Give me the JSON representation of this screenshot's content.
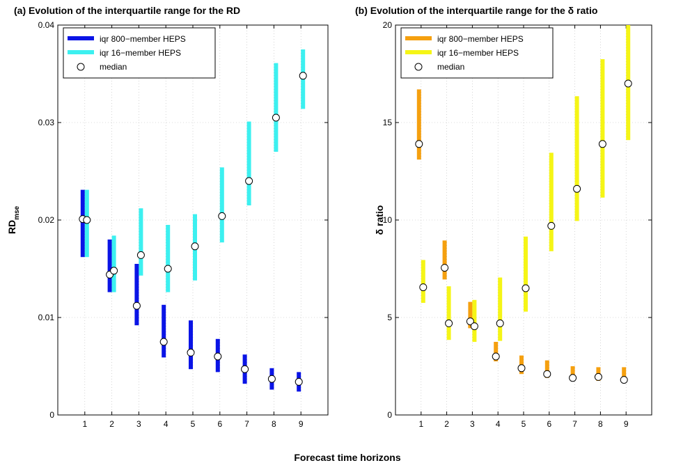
{
  "figure": {
    "xlabel": "Forecast time horizons"
  },
  "chart_data": [
    {
      "type": "range-bar",
      "title": "(a) Evolution of the interquartile range for the RD",
      "ylabel_main": "RD",
      "ylabel_sub": "mse",
      "ylim": [
        0,
        0.04
      ],
      "yticks": [
        0,
        0.01,
        0.02,
        0.03,
        0.04
      ],
      "ytick_labels": [
        "0",
        "0.01",
        "0.02",
        "0.03",
        "0.04"
      ],
      "xlim": [
        0,
        10
      ],
      "xticks": [
        1,
        2,
        3,
        4,
        5,
        6,
        7,
        8,
        9
      ],
      "grid": true,
      "legend_position": "top-left",
      "series": [
        {
          "name": "iqr 800−member HEPS",
          "color": "#0a14e6",
          "x": [
            1,
            2,
            3,
            4,
            5,
            6,
            7,
            8,
            9
          ],
          "lower": [
            0.0162,
            0.0126,
            0.0092,
            0.0059,
            0.0047,
            0.0044,
            0.0032,
            0.0026,
            0.0024
          ],
          "upper": [
            0.0231,
            0.018,
            0.0155,
            0.0113,
            0.0097,
            0.0078,
            0.0062,
            0.0048,
            0.0044
          ],
          "median": [
            0.0201,
            0.0144,
            0.0112,
            0.0075,
            0.0064,
            0.006,
            0.0047,
            0.0037,
            0.0034
          ]
        },
        {
          "name": "iqr 16−member HEPS",
          "color": "#3cf0f0",
          "x": [
            1,
            2,
            3,
            4,
            5,
            6,
            7,
            8,
            9
          ],
          "lower": [
            0.0162,
            0.0126,
            0.0143,
            0.0126,
            0.0138,
            0.0177,
            0.0215,
            0.027,
            0.0314
          ],
          "upper": [
            0.0231,
            0.0184,
            0.0212,
            0.0195,
            0.0206,
            0.0254,
            0.0301,
            0.0361,
            0.0375
          ],
          "median": [
            0.02,
            0.0148,
            0.0164,
            0.015,
            0.0173,
            0.0204,
            0.024,
            0.0305,
            0.0348
          ]
        }
      ],
      "median_label": "median"
    },
    {
      "type": "range-bar",
      "title": "(b) Evolution of the interquartile range for the δ ratio",
      "ylabel_main": "δ ratio",
      "ylim": [
        0,
        20
      ],
      "yticks": [
        0,
        5,
        10,
        15,
        20
      ],
      "ytick_labels": [
        "0",
        "5",
        "10",
        "15",
        "20"
      ],
      "xlim": [
        0,
        10
      ],
      "xticks": [
        1,
        2,
        3,
        4,
        5,
        6,
        7,
        8,
        9
      ],
      "grid": true,
      "legend_position": "top-left",
      "series": [
        {
          "name": "iqr 800−member HEPS",
          "color": "#f5a00f",
          "x": [
            1,
            2,
            3,
            4,
            5,
            6,
            7,
            8,
            9
          ],
          "lower": [
            13.1,
            6.95,
            4.45,
            2.75,
            2.1,
            1.9,
            1.75,
            1.75,
            1.7
          ],
          "upper": [
            16.7,
            8.95,
            5.8,
            3.75,
            3.05,
            2.8,
            2.5,
            2.45,
            2.45
          ],
          "median": [
            13.9,
            7.55,
            4.8,
            3.0,
            2.4,
            2.1,
            1.9,
            1.95,
            1.8
          ]
        },
        {
          "name": "iqr 16−member HEPS",
          "color": "#f5f516",
          "x": [
            1,
            2,
            3,
            4,
            5,
            6,
            7,
            8,
            9
          ],
          "lower": [
            5.75,
            3.85,
            3.75,
            3.8,
            5.3,
            8.4,
            9.95,
            11.15,
            14.1
          ],
          "upper": [
            7.95,
            6.6,
            5.9,
            7.05,
            9.15,
            13.45,
            16.35,
            18.25,
            20.0
          ],
          "median": [
            6.55,
            4.7,
            4.55,
            4.7,
            6.5,
            9.7,
            11.6,
            13.9,
            17.0
          ]
        }
      ],
      "median_label": "median"
    }
  ]
}
